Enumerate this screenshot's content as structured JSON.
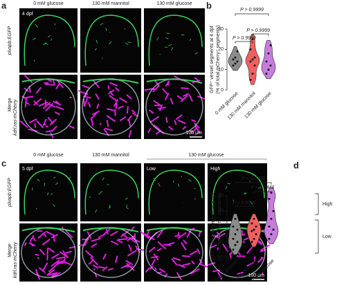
{
  "labels": {
    "a": "a",
    "b": "b",
    "c": "c",
    "d": "d"
  },
  "panel_a": {
    "columns": [
      "0 mM glucose",
      "130 mM mannitol",
      "130 mM glucose"
    ],
    "stage": "4 dpf",
    "row_labels": [
      "plvapb:EGFP",
      "Merge"
    ],
    "merge_channel": "kdrl:ras-mCherry",
    "scale_bar": "100 μm"
  },
  "panel_c": {
    "columns": [
      "0 mM glucose",
      "130 mM mannitol",
      "130 mM glucose"
    ],
    "subcolumns": [
      "Low",
      "High"
    ],
    "stage": "5 dpf",
    "row_labels": [
      "plvapb:EGFP",
      "Merge"
    ],
    "merge_channel": "kdrl:ras-mCherry",
    "scale_bar": "100 μm"
  },
  "chart_data": [
    {
      "type": "violin",
      "ylabel": [
        "GFP⁺ vessel segments at 4 dpf",
        "(% of total mCherry⁺ segments)"
      ],
      "ylim": [
        0,
        30
      ],
      "yticks": [
        0,
        10,
        20,
        30
      ],
      "series": [
        {
          "name": "0 mM glucose",
          "color": "#8c8c8c",
          "values": [
            12,
            13,
            14,
            15,
            16,
            19
          ]
        },
        {
          "name": "130 mM mannitol",
          "color": "#f0605f",
          "values": [
            5,
            8,
            12,
            14,
            15,
            16,
            20,
            25
          ]
        },
        {
          "name": "130 mM glucose",
          "color": "#c77dde",
          "values": [
            8,
            10,
            12,
            14,
            18,
            22
          ]
        }
      ],
      "annotations": [
        "P > 0.9999",
        "P > 0.9999",
        "P > 0.9999"
      ]
    },
    {
      "type": "violin",
      "ylabel": [
        "GFP⁺ vessel segments at 5 dpf",
        "(% of total mCherry⁺ segments)"
      ],
      "ylim": [
        0,
        40
      ],
      "yticks": [
        0,
        10,
        20,
        30,
        40
      ],
      "series": [
        {
          "name": "0 mM glucose",
          "color": "#8c8c8c",
          "values": [
            5,
            8,
            10,
            12,
            15,
            18,
            20,
            25
          ]
        },
        {
          "name": "130 mM mannitol",
          "color": "#f0605f",
          "values": [
            10,
            12,
            15,
            17,
            18,
            20,
            22,
            25
          ]
        },
        {
          "name": "130 mM glucose",
          "color": "#c77dde",
          "values": [
            12,
            15,
            18,
            20,
            25,
            30,
            38,
            42
          ]
        }
      ],
      "annotations": [
        "P = 0.0258",
        "P = 0.2446",
        "P > 0.9999",
        "High",
        "Low"
      ]
    }
  ]
}
